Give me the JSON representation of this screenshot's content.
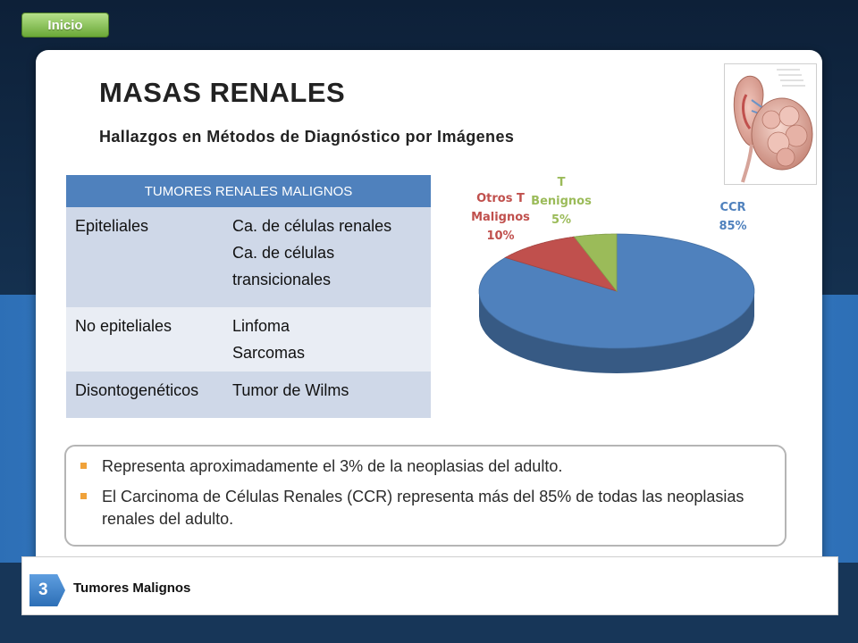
{
  "nav": {
    "home_label": "Inicio"
  },
  "slide": {
    "title": "MASAS RENALES",
    "subtitle": "Hallazgos en Métodos de Diagnóstico por Imágenes"
  },
  "table": {
    "header": "TUMORES RENALES MALIGNOS",
    "rows": [
      {
        "category": "Epiteliales",
        "items": [
          "Ca. de células renales",
          "Ca. de células transicionales"
        ]
      },
      {
        "category": "No epiteliales",
        "items": [
          "Linfoma",
          "Sarcomas"
        ]
      },
      {
        "category": "Disontogenéticos",
        "items": [
          "Tumor de Wilms"
        ]
      }
    ]
  },
  "chart_data": {
    "type": "pie",
    "categories": [
      "CCR",
      "Otros T Malignos",
      "T Benignos"
    ],
    "values": [
      85,
      10,
      5
    ],
    "labels": [
      "CCR\n85%",
      "Otros T\nMalignos\n10%",
      "T\nBenignos\n5%"
    ],
    "colors": [
      "#4f81bd",
      "#c0504d",
      "#9bbb59"
    ],
    "label_colors": [
      "#4f81bd",
      "#c0504d",
      "#9bbb59"
    ],
    "style": "3d"
  },
  "bullets": [
    "Representa aproximadamente el 3% de la neoplasias del adulto.",
    "El Carcinoma de Células Renales (CCR) representa más del 85% de todas las neoplasias renales del adulto."
  ],
  "footer": {
    "page_number": "3",
    "section_title": "Tumores Malignos"
  }
}
